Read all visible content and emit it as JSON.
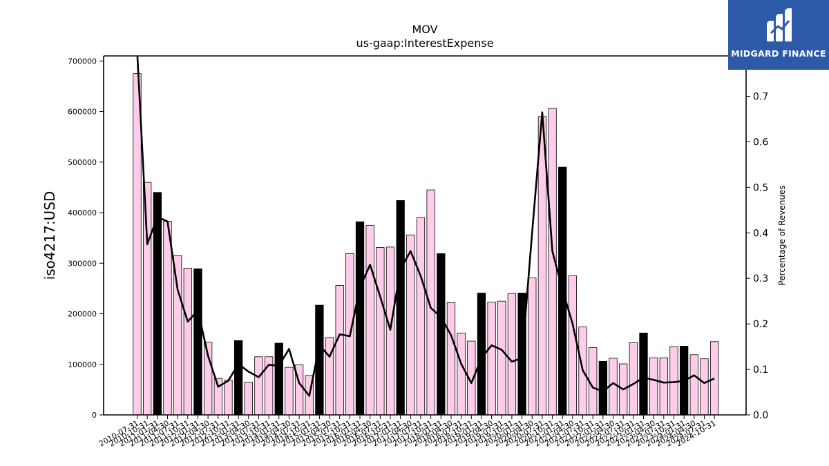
{
  "chart_data": {
    "type": "bar",
    "title": "MOV",
    "subtitle": "us-gaap:InterestExpense",
    "ylabel": "iso4217:USD",
    "y2label": "Percentage of Revenues",
    "ylim": [
      0,
      710000
    ],
    "y2lim": [
      0,
      0.7888
    ],
    "yticks": [
      0,
      100000,
      200000,
      300000,
      400000,
      500000,
      600000,
      700000
    ],
    "y2ticks": [
      0.0,
      0.1,
      0.2,
      0.3,
      0.4,
      0.5,
      0.6,
      0.7
    ],
    "y2tick_labels": [
      "0.0",
      "0.1",
      "0.2",
      "0.3",
      "0.4",
      "0.5",
      "0.6",
      "0.7"
    ],
    "categories": [
      "2010-07-31",
      "2010-10-31",
      "2011-01-31",
      "2011-04-30",
      "2011-07-31",
      "2011-10-31",
      "2012-01-31",
      "2012-04-30",
      "2012-07-31",
      "2012-10-31",
      "2013-01-31",
      "2013-04-30",
      "2013-07-31",
      "2013-10-31",
      "2014-01-31",
      "2014-04-30",
      "2014-07-31",
      "2014-10-31",
      "2015-01-31",
      "2015-04-30",
      "2015-07-31",
      "2015-10-31",
      "2016-01-31",
      "2016-04-30",
      "2016-07-31",
      "2016-10-31",
      "2017-01-31",
      "2017-04-30",
      "2017-07-31",
      "2017-10-31",
      "2018-01-31",
      "2018-04-30",
      "2018-07-31",
      "2018-10-31",
      "2019-01-31",
      "2019-04-30",
      "2019-07-31",
      "2019-10-31",
      "2020-01-31",
      "2020-04-30",
      "2020-07-31",
      "2020-10-31",
      "2021-01-31",
      "2021-04-30",
      "2021-07-31",
      "2021-10-31",
      "2022-01-31",
      "2022-04-30",
      "2022-07-31",
      "2022-10-31",
      "2023-01-31",
      "2023-04-30",
      "2023-07-31",
      "2023-10-31",
      "2024-01-31",
      "2024-04-30",
      "2024-07-31",
      "2024-10-31"
    ],
    "series": [
      {
        "kind": "bar",
        "values": [
          675000,
          460000,
          440000,
          383000,
          315000,
          290000,
          289000,
          144000,
          72000,
          69000,
          147000,
          65000,
          115000,
          115000,
          142000,
          94000,
          99000,
          78000,
          217000,
          153000,
          256000,
          319000,
          382000,
          375000,
          331000,
          332000,
          424000,
          356000,
          390000,
          445000,
          319000,
          222000,
          162000,
          146000,
          241000,
          223000,
          225000,
          240000,
          241000,
          271000,
          590000,
          606000,
          490000,
          275000,
          174000,
          133000,
          106000,
          112000,
          101000,
          143000,
          162000,
          113000,
          113000,
          135000,
          136000,
          119000,
          111000,
          145000
        ],
        "highlight": [
          false,
          false,
          true,
          false,
          false,
          false,
          true,
          false,
          false,
          false,
          true,
          false,
          false,
          false,
          true,
          false,
          false,
          false,
          true,
          false,
          false,
          false,
          true,
          false,
          false,
          false,
          true,
          false,
          false,
          false,
          true,
          false,
          false,
          false,
          true,
          false,
          false,
          false,
          true,
          false,
          false,
          false,
          true,
          false,
          false,
          false,
          true,
          false,
          false,
          false,
          true,
          false,
          false,
          false,
          true,
          false,
          false,
          false
        ]
      },
      {
        "kind": "line",
        "axis": "right",
        "values": [
          0.8,
          0.375,
          0.435,
          0.425,
          0.275,
          0.205,
          0.23,
          0.13,
          0.062,
          0.075,
          0.112,
          0.095,
          0.083,
          0.11,
          0.108,
          0.145,
          0.07,
          0.042,
          0.153,
          0.128,
          0.177,
          0.173,
          0.28,
          0.33,
          0.26,
          0.187,
          0.32,
          0.36,
          0.305,
          0.235,
          0.215,
          0.175,
          0.112,
          0.07,
          0.125,
          0.153,
          0.143,
          0.117,
          0.125,
          0.4,
          0.665,
          0.36,
          0.275,
          0.2,
          0.098,
          0.06,
          0.052,
          0.07,
          0.056,
          0.068,
          0.082,
          0.077,
          0.071,
          0.072,
          0.075,
          0.087,
          0.07,
          0.08
        ]
      }
    ],
    "colors": {
      "bar": "#ffccea",
      "bar_highlight": "#000000",
      "bar_edge": "#000000",
      "line": "#000000"
    },
    "grid": false,
    "legend": "none"
  },
  "logo": {
    "text": "MIDGARD FINANCE",
    "color": "#2c5aa8"
  }
}
